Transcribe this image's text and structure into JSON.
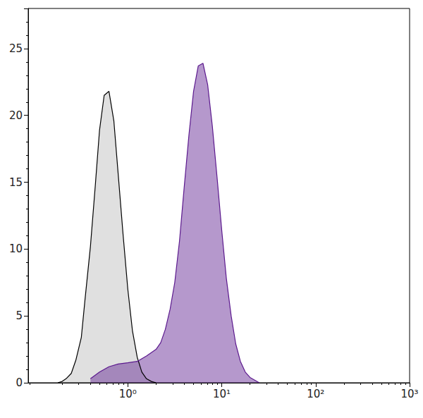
{
  "chart_data": {
    "type": "line",
    "log": "x",
    "grid": false,
    "xlim": [
      0.087,
      1000
    ],
    "xticks": [
      {
        "value": 1,
        "label": "10⁰"
      },
      {
        "value": 10,
        "label": "10¹"
      },
      {
        "value": 100,
        "label": "10²"
      },
      {
        "value": 1000,
        "label": "10³"
      }
    ],
    "ylim": [
      0,
      28
    ],
    "yticks": [
      0,
      5,
      10,
      15,
      20,
      25
    ],
    "series": [
      {
        "color": "#000000",
        "x": [
          0.18,
          0.2,
          0.22,
          0.25,
          0.28,
          0.32,
          0.35,
          0.4,
          0.45,
          0.5,
          0.56,
          0.63,
          0.71,
          0.79,
          0.89,
          1.0,
          1.12,
          1.26,
          1.41,
          1.58,
          1.78,
          2.0
        ],
        "values": [
          0,
          0.1,
          0.3,
          0.7,
          1.7,
          3.4,
          6.2,
          10.2,
          14.7,
          18.9,
          21.5,
          21.8,
          19.6,
          15.6,
          11.1,
          7.0,
          3.9,
          1.9,
          0.8,
          0.3,
          0.1,
          0
        ]
      },
      {
        "color": "#5c1a8e",
        "x": [
          0.4,
          0.5,
          0.63,
          0.79,
          1.0,
          1.26,
          1.58,
          2.0,
          2.24,
          2.51,
          2.82,
          3.16,
          3.55,
          3.98,
          4.47,
          5.01,
          5.62,
          6.31,
          7.08,
          7.94,
          8.91,
          10,
          11.2,
          12.6,
          14.1,
          15.8,
          17.8,
          20,
          22.4,
          25.1
        ],
        "values": [
          0.3,
          0.8,
          1.2,
          1.4,
          1.5,
          1.6,
          2.0,
          2.5,
          3.0,
          4.0,
          5.5,
          7.5,
          10.6,
          14.6,
          18.5,
          21.8,
          23.7,
          23.9,
          22.3,
          19.2,
          15.4,
          11.4,
          7.8,
          5.0,
          2.9,
          1.6,
          0.8,
          0.4,
          0.2,
          0
        ]
      }
    ]
  }
}
